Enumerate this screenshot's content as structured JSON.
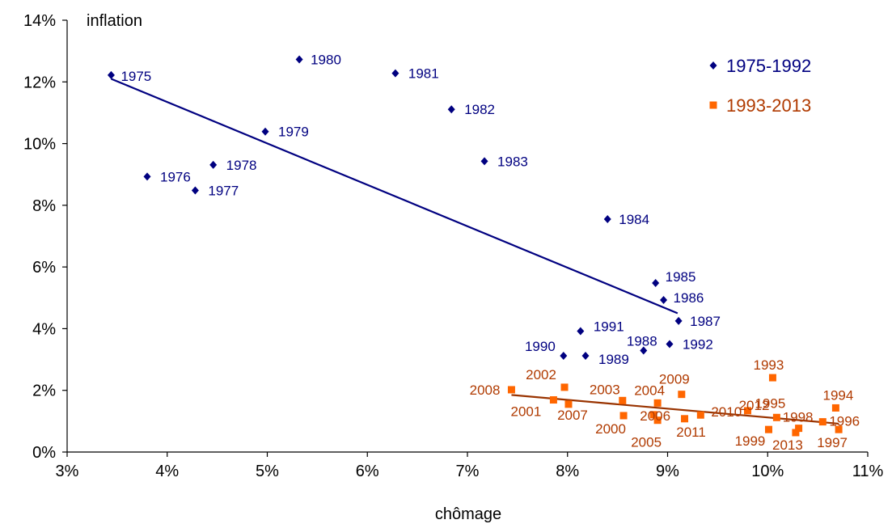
{
  "chart_data": {
    "type": "scatter",
    "xlabel": "chômage",
    "ylabel": "inflation",
    "xlim": [
      0.03,
      0.11
    ],
    "ylim": [
      0,
      0.14
    ],
    "x_ticks": [
      "3%",
      "4%",
      "5%",
      "6%",
      "7%",
      "8%",
      "9%",
      "10%",
      "11%"
    ],
    "y_ticks": [
      "0%",
      "2%",
      "4%",
      "6%",
      "8%",
      "10%",
      "12%",
      "14%"
    ],
    "grid": false,
    "legend_position": "top-right",
    "series": [
      {
        "name": "1975-1992",
        "color": "#000080",
        "marker": "diamond",
        "trendline": {
          "x": [
            0.0344,
            0.091
          ],
          "y": [
            0.121,
            0.045
          ]
        },
        "points": [
          {
            "label": "1975",
            "x": 0.0344,
            "y": 0.1222
          },
          {
            "label": "1976",
            "x": 0.038,
            "y": 0.0893
          },
          {
            "label": "1977",
            "x": 0.0428,
            "y": 0.0848
          },
          {
            "label": "1978",
            "x": 0.0446,
            "y": 0.0931
          },
          {
            "label": "1979",
            "x": 0.0498,
            "y": 0.1039
          },
          {
            "label": "1980",
            "x": 0.0532,
            "y": 0.1273
          },
          {
            "label": "1981",
            "x": 0.0628,
            "y": 0.1228
          },
          {
            "label": "1982",
            "x": 0.0684,
            "y": 0.1111
          },
          {
            "label": "1983",
            "x": 0.0717,
            "y": 0.0943
          },
          {
            "label": "1984",
            "x": 0.084,
            "y": 0.0755
          },
          {
            "label": "1985",
            "x": 0.0888,
            "y": 0.0548
          },
          {
            "label": "1986",
            "x": 0.0896,
            "y": 0.0493
          },
          {
            "label": "1987",
            "x": 0.0911,
            "y": 0.0425
          },
          {
            "label": "1988",
            "x": 0.0876,
            "y": 0.0329
          },
          {
            "label": "1989",
            "x": 0.0818,
            "y": 0.0312
          },
          {
            "label": "1990",
            "x": 0.0796,
            "y": 0.0312
          },
          {
            "label": "1991",
            "x": 0.0813,
            "y": 0.0392
          },
          {
            "label": "1992",
            "x": 0.0902,
            "y": 0.035
          }
        ]
      },
      {
        "name": "1993-2013",
        "color": "#FF6600",
        "label_color": "#B03A00",
        "trend_color": "#993300",
        "marker": "square",
        "trendline": {
          "x": [
            0.0744,
            0.1071
          ],
          "y": [
            0.0185,
            0.0092
          ]
        },
        "points": [
          {
            "label": "1993",
            "x": 0.1005,
            "y": 0.0241
          },
          {
            "label": "1994",
            "x": 0.1068,
            "y": 0.0143
          },
          {
            "label": "1995",
            "x": 0.1009,
            "y": 0.0112
          },
          {
            "label": "1996",
            "x": 0.1055,
            "y": 0.0098
          },
          {
            "label": "1997",
            "x": 0.1071,
            "y": 0.0073
          },
          {
            "label": "1998",
            "x": 0.1031,
            "y": 0.0077
          },
          {
            "label": "1999",
            "x": 0.1001,
            "y": 0.0073
          },
          {
            "label": "2000",
            "x": 0.0856,
            "y": 0.0118
          },
          {
            "label": "2001",
            "x": 0.0786,
            "y": 0.0169
          },
          {
            "label": "2002",
            "x": 0.0797,
            "y": 0.021
          },
          {
            "label": "2003",
            "x": 0.0855,
            "y": 0.0167
          },
          {
            "label": "2004",
            "x": 0.089,
            "y": 0.0159
          },
          {
            "label": "2005",
            "x": 0.089,
            "y": 0.0103
          },
          {
            "label": "2006",
            "x": 0.0886,
            "y": 0.0121
          },
          {
            "label": "2007",
            "x": 0.0801,
            "y": 0.0155
          },
          {
            "label": "2008",
            "x": 0.0744,
            "y": 0.0202
          },
          {
            "label": "2009",
            "x": 0.0914,
            "y": 0.0187
          },
          {
            "label": "2010",
            "x": 0.0933,
            "y": 0.012
          },
          {
            "label": "2011",
            "x": 0.0917,
            "y": 0.0108
          },
          {
            "label": "2012",
            "x": 0.098,
            "y": 0.0134
          },
          {
            "label": "2013",
            "x": 0.1028,
            "y": 0.0063
          }
        ]
      }
    ]
  }
}
